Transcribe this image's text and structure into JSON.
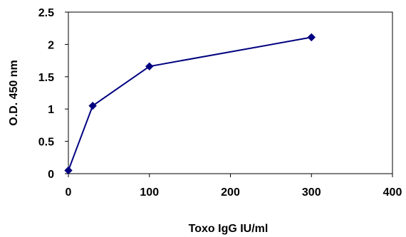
{
  "chart_data": {
    "type": "line",
    "title": "",
    "xlabel": "Toxo IgG IU/ml",
    "ylabel": "O.D. 450 nm",
    "xlim": [
      0,
      400
    ],
    "ylim": [
      0,
      2.5
    ],
    "x_ticks": [
      "0",
      "100",
      "200",
      "300",
      "400"
    ],
    "y_ticks": [
      "0",
      "0.5",
      "1",
      "1.5",
      "2",
      "2.5"
    ],
    "grid": false,
    "legend": "none",
    "series": [
      {
        "color": "#000080",
        "marker": "diamond",
        "points": [
          {
            "x": 0,
            "y": 0.05
          },
          {
            "x": 30,
            "y": 1.05
          },
          {
            "x": 100,
            "y": 1.66
          },
          {
            "x": 300,
            "y": 2.11
          }
        ]
      }
    ]
  }
}
